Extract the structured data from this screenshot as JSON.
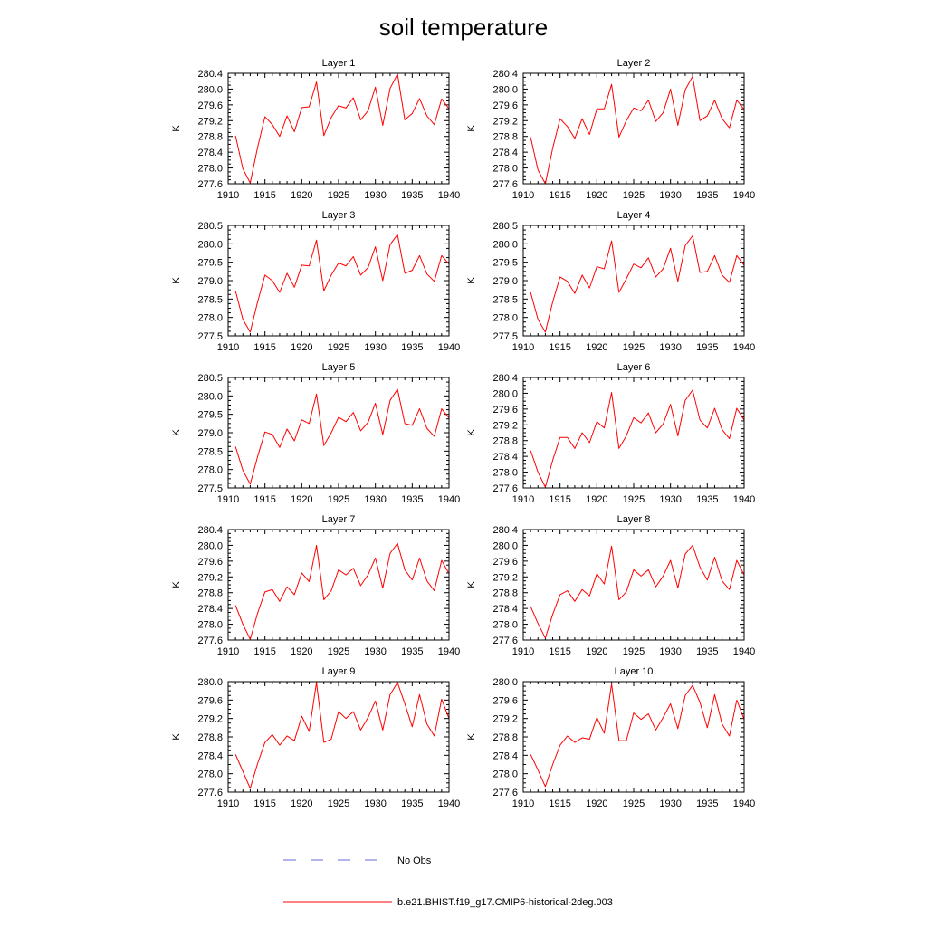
{
  "figure": {
    "title": "soil temperature"
  },
  "legend": {
    "entries": [
      {
        "label": "No Obs",
        "color": "#6a6ad8",
        "dash": true
      },
      {
        "label": "b.e21.BHIST.f19_g17.CMIP6-historical-2deg.003",
        "color": "#ff0000",
        "dash": false
      }
    ]
  },
  "chart_data": [
    {
      "type": "line",
      "title": "Layer 1",
      "xlabel": "",
      "ylabel": "K",
      "xlim": [
        1910,
        1940
      ],
      "ylim": [
        277.6,
        280.4
      ],
      "xticks": [
        "1910",
        "1915",
        "1920",
        "1925",
        "1930",
        "1935",
        "1940"
      ],
      "yticks": [
        "277.6",
        "278.0",
        "278.4",
        "278.8",
        "279.2",
        "279.6",
        "280.0",
        "280.4"
      ],
      "series": [
        {
          "name": "b.e21.BHIST.f19_g17.CMIP6-historical-2deg.003",
          "color": "#ff0000",
          "x": [
            1911,
            1912,
            1913,
            1914,
            1915,
            1916,
            1917,
            1918,
            1919,
            1920,
            1921,
            1922,
            1923,
            1924,
            1925,
            1926,
            1927,
            1928,
            1929,
            1930,
            1931,
            1932,
            1933,
            1934,
            1935,
            1936,
            1937,
            1938,
            1939,
            1940
          ],
          "y": [
            278.82,
            277.98,
            277.62,
            278.52,
            279.3,
            279.1,
            278.8,
            279.32,
            278.92,
            279.53,
            279.55,
            280.18,
            278.82,
            279.28,
            279.58,
            279.52,
            279.78,
            279.22,
            279.45,
            280.05,
            279.08,
            280.02,
            280.38,
            279.22,
            279.38,
            279.76,
            279.32,
            279.1,
            279.75,
            279.5
          ]
        }
      ]
    },
    {
      "type": "line",
      "title": "Layer 2",
      "xlabel": "",
      "ylabel": "K",
      "xlim": [
        1910,
        1940
      ],
      "ylim": [
        277.6,
        280.4
      ],
      "xticks": [
        "1910",
        "1915",
        "1920",
        "1925",
        "1930",
        "1935",
        "1940"
      ],
      "yticks": [
        "277.6",
        "278.0",
        "278.4",
        "278.8",
        "279.2",
        "279.6",
        "280.0",
        "280.4"
      ],
      "series": [
        {
          "name": "b.e21.BHIST.f19_g17.CMIP6-historical-2deg.003",
          "color": "#ff0000",
          "x": [
            1911,
            1912,
            1913,
            1914,
            1915,
            1916,
            1917,
            1918,
            1919,
            1920,
            1921,
            1922,
            1923,
            1924,
            1925,
            1926,
            1927,
            1928,
            1929,
            1930,
            1931,
            1932,
            1933,
            1934,
            1935,
            1936,
            1937,
            1938,
            1939,
            1940
          ],
          "y": [
            278.78,
            277.95,
            277.6,
            278.5,
            279.25,
            279.05,
            278.75,
            279.25,
            278.85,
            279.5,
            279.5,
            280.12,
            278.78,
            279.2,
            279.52,
            279.45,
            279.72,
            279.18,
            279.4,
            280.0,
            279.08,
            279.98,
            280.32,
            279.2,
            279.32,
            279.72,
            279.25,
            279.02,
            279.72,
            279.48
          ]
        }
      ]
    },
    {
      "type": "line",
      "title": "Layer 3",
      "xlabel": "",
      "ylabel": "K",
      "xlim": [
        1910,
        1940
      ],
      "ylim": [
        277.5,
        280.5
      ],
      "xticks": [
        "1910",
        "1915",
        "1920",
        "1925",
        "1930",
        "1935",
        "1940"
      ],
      "yticks": [
        "277.5",
        "278.0",
        "278.5",
        "279.0",
        "279.5",
        "280.0",
        "280.5"
      ],
      "series": [
        {
          "name": "b.e21.BHIST.f19_g17.CMIP6-historical-2deg.003",
          "color": "#ff0000",
          "x": [
            1911,
            1912,
            1913,
            1914,
            1915,
            1916,
            1917,
            1918,
            1919,
            1920,
            1921,
            1922,
            1923,
            1924,
            1925,
            1926,
            1927,
            1928,
            1929,
            1930,
            1931,
            1932,
            1933,
            1934,
            1935,
            1936,
            1937,
            1938,
            1939,
            1940
          ],
          "y": [
            278.72,
            277.95,
            277.6,
            278.42,
            279.15,
            279.0,
            278.68,
            279.2,
            278.82,
            279.42,
            279.4,
            280.1,
            278.72,
            279.15,
            279.48,
            279.4,
            279.65,
            279.15,
            279.35,
            279.92,
            279.0,
            279.98,
            280.25,
            279.2,
            279.28,
            279.68,
            279.18,
            278.98,
            279.68,
            279.45
          ]
        }
      ]
    },
    {
      "type": "line",
      "title": "Layer 4",
      "xlabel": "",
      "ylabel": "K",
      "xlim": [
        1910,
        1940
      ],
      "ylim": [
        277.5,
        280.5
      ],
      "xticks": [
        "1910",
        "1915",
        "1920",
        "1925",
        "1930",
        "1935",
        "1940"
      ],
      "yticks": [
        "277.5",
        "278.0",
        "278.5",
        "279.0",
        "279.5",
        "280.0",
        "280.5"
      ],
      "series": [
        {
          "name": "b.e21.BHIST.f19_g17.CMIP6-historical-2deg.003",
          "color": "#ff0000",
          "x": [
            1911,
            1912,
            1913,
            1914,
            1915,
            1916,
            1917,
            1918,
            1919,
            1920,
            1921,
            1922,
            1923,
            1924,
            1925,
            1926,
            1927,
            1928,
            1929,
            1930,
            1931,
            1932,
            1933,
            1934,
            1935,
            1936,
            1937,
            1938,
            1939,
            1940
          ],
          "y": [
            278.68,
            277.95,
            277.6,
            278.42,
            279.1,
            278.98,
            278.65,
            279.15,
            278.8,
            279.38,
            279.32,
            280.08,
            278.68,
            279.05,
            279.45,
            279.35,
            279.62,
            279.1,
            279.32,
            279.88,
            278.98,
            279.95,
            280.22,
            279.22,
            279.25,
            279.68,
            279.15,
            278.95,
            279.68,
            279.42
          ]
        }
      ]
    },
    {
      "type": "line",
      "title": "Layer 5",
      "xlabel": "",
      "ylabel": "K",
      "xlim": [
        1910,
        1940
      ],
      "ylim": [
        277.5,
        280.5
      ],
      "xticks": [
        "1910",
        "1915",
        "1920",
        "1925",
        "1930",
        "1935",
        "1940"
      ],
      "yticks": [
        "277.5",
        "278.0",
        "278.5",
        "279.0",
        "279.5",
        "280.0",
        "280.5"
      ],
      "series": [
        {
          "name": "b.e21.BHIST.f19_g17.CMIP6-historical-2deg.003",
          "color": "#ff0000",
          "x": [
            1911,
            1912,
            1913,
            1914,
            1915,
            1916,
            1917,
            1918,
            1919,
            1920,
            1921,
            1922,
            1923,
            1924,
            1925,
            1926,
            1927,
            1928,
            1929,
            1930,
            1931,
            1932,
            1933,
            1934,
            1935,
            1936,
            1937,
            1938,
            1939,
            1940
          ],
          "y": [
            278.62,
            277.98,
            277.6,
            278.35,
            279.02,
            278.95,
            278.6,
            279.1,
            278.78,
            279.35,
            279.25,
            280.05,
            278.65,
            279.0,
            279.42,
            279.3,
            279.55,
            279.05,
            279.28,
            279.8,
            278.95,
            279.88,
            280.18,
            279.25,
            279.2,
            279.65,
            279.12,
            278.9,
            279.65,
            279.4
          ]
        }
      ]
    },
    {
      "type": "line",
      "title": "Layer 6",
      "xlabel": "",
      "ylabel": "K",
      "xlim": [
        1910,
        1940
      ],
      "ylim": [
        277.6,
        280.4
      ],
      "xticks": [
        "1910",
        "1915",
        "1920",
        "1925",
        "1930",
        "1935",
        "1940"
      ],
      "yticks": [
        "277.6",
        "278.0",
        "278.4",
        "278.8",
        "279.2",
        "279.6",
        "280.0",
        "280.4"
      ],
      "series": [
        {
          "name": "b.e21.BHIST.f19_g17.CMIP6-historical-2deg.003",
          "color": "#ff0000",
          "x": [
            1911,
            1912,
            1913,
            1914,
            1915,
            1916,
            1917,
            1918,
            1919,
            1920,
            1921,
            1922,
            1923,
            1924,
            1925,
            1926,
            1927,
            1928,
            1929,
            1930,
            1931,
            1932,
            1933,
            1934,
            1935,
            1936,
            1937,
            1938,
            1939,
            1940
          ],
          "y": [
            278.55,
            278.0,
            277.62,
            278.3,
            278.88,
            278.88,
            278.6,
            279.0,
            278.75,
            279.28,
            279.12,
            280.02,
            278.6,
            278.92,
            279.38,
            279.25,
            279.5,
            279.0,
            279.22,
            279.72,
            278.92,
            279.82,
            280.08,
            279.32,
            279.12,
            279.62,
            279.08,
            278.85,
            279.62,
            279.32
          ]
        }
      ]
    },
    {
      "type": "line",
      "title": "Layer 7",
      "xlabel": "",
      "ylabel": "K",
      "xlim": [
        1910,
        1940
      ],
      "ylim": [
        277.6,
        280.4
      ],
      "xticks": [
        "1910",
        "1915",
        "1920",
        "1925",
        "1930",
        "1935",
        "1940"
      ],
      "yticks": [
        "277.6",
        "278.0",
        "278.4",
        "278.8",
        "279.2",
        "279.6",
        "280.0",
        "280.4"
      ],
      "series": [
        {
          "name": "b.e21.BHIST.f19_g17.CMIP6-historical-2deg.003",
          "color": "#ff0000",
          "x": [
            1911,
            1912,
            1913,
            1914,
            1915,
            1916,
            1917,
            1918,
            1919,
            1920,
            1921,
            1922,
            1923,
            1924,
            1925,
            1926,
            1927,
            1928,
            1929,
            1930,
            1931,
            1932,
            1933,
            1934,
            1935,
            1936,
            1937,
            1938,
            1939,
            1940
          ],
          "y": [
            278.48,
            278.0,
            277.62,
            278.28,
            278.82,
            278.88,
            278.58,
            278.95,
            278.75,
            279.3,
            279.08,
            280.0,
            278.62,
            278.85,
            279.38,
            279.25,
            279.42,
            278.98,
            279.25,
            279.68,
            278.92,
            279.8,
            280.05,
            279.38,
            279.12,
            279.68,
            279.1,
            278.85,
            279.62,
            279.28
          ]
        }
      ]
    },
    {
      "type": "line",
      "title": "Layer 8",
      "xlabel": "",
      "ylabel": "K",
      "xlim": [
        1910,
        1940
      ],
      "ylim": [
        277.6,
        280.4
      ],
      "xticks": [
        "1910",
        "1915",
        "1920",
        "1925",
        "1930",
        "1935",
        "1940"
      ],
      "yticks": [
        "277.6",
        "278.0",
        "278.4",
        "278.8",
        "279.2",
        "279.6",
        "280.0",
        "280.4"
      ],
      "series": [
        {
          "name": "b.e21.BHIST.f19_g17.CMIP6-historical-2deg.003",
          "color": "#ff0000",
          "x": [
            1911,
            1912,
            1913,
            1914,
            1915,
            1916,
            1917,
            1918,
            1919,
            1920,
            1921,
            1922,
            1923,
            1924,
            1925,
            1926,
            1927,
            1928,
            1929,
            1930,
            1931,
            1932,
            1933,
            1934,
            1935,
            1936,
            1937,
            1938,
            1939,
            1940
          ],
          "y": [
            278.45,
            278.02,
            277.65,
            278.25,
            278.75,
            278.85,
            278.58,
            278.88,
            278.72,
            279.28,
            279.02,
            279.98,
            278.62,
            278.82,
            279.38,
            279.22,
            279.38,
            278.95,
            279.22,
            279.62,
            278.92,
            279.78,
            280.0,
            279.45,
            279.12,
            279.7,
            279.1,
            278.88,
            279.62,
            279.25
          ]
        }
      ]
    },
    {
      "type": "line",
      "title": "Layer 9",
      "xlabel": "",
      "ylabel": "K",
      "xlim": [
        1910,
        1940
      ],
      "ylim": [
        277.6,
        280.0
      ],
      "xticks": [
        "1910",
        "1915",
        "1920",
        "1925",
        "1930",
        "1935",
        "1940"
      ],
      "yticks": [
        "277.6",
        "278.0",
        "278.4",
        "278.8",
        "279.2",
        "279.6",
        "280.0"
      ],
      "series": [
        {
          "name": "b.e21.BHIST.f19_g17.CMIP6-historical-2deg.003",
          "color": "#ff0000",
          "x": [
            1911,
            1912,
            1913,
            1914,
            1915,
            1916,
            1917,
            1918,
            1919,
            1920,
            1921,
            1922,
            1923,
            1924,
            1925,
            1926,
            1927,
            1928,
            1929,
            1930,
            1931,
            1932,
            1933,
            1934,
            1935,
            1936,
            1937,
            1938,
            1939,
            1940
          ],
          "y": [
            278.42,
            278.05,
            277.68,
            278.22,
            278.68,
            278.85,
            278.62,
            278.82,
            278.72,
            279.25,
            278.92,
            279.98,
            278.68,
            278.75,
            279.35,
            279.2,
            279.35,
            278.95,
            279.22,
            279.58,
            278.95,
            279.72,
            279.98,
            279.52,
            279.02,
            279.72,
            279.08,
            278.82,
            279.62,
            279.2
          ]
        }
      ]
    },
    {
      "type": "line",
      "title": "Layer 10",
      "xlabel": "",
      "ylabel": "K",
      "xlim": [
        1910,
        1940
      ],
      "ylim": [
        277.6,
        280.0
      ],
      "xticks": [
        "1910",
        "1915",
        "1920",
        "1925",
        "1930",
        "1935",
        "1940"
      ],
      "yticks": [
        "277.6",
        "278.0",
        "278.4",
        "278.8",
        "279.2",
        "279.6",
        "280.0"
      ],
      "series": [
        {
          "name": "b.e21.BHIST.f19_g17.CMIP6-historical-2deg.003",
          "color": "#ff0000",
          "x": [
            1911,
            1912,
            1913,
            1914,
            1915,
            1916,
            1917,
            1918,
            1919,
            1920,
            1921,
            1922,
            1923,
            1924,
            1925,
            1926,
            1927,
            1928,
            1929,
            1930,
            1931,
            1932,
            1933,
            1934,
            1935,
            1936,
            1937,
            1938,
            1939,
            1940
          ],
          "y": [
            278.42,
            278.08,
            277.72,
            278.2,
            278.62,
            278.82,
            278.68,
            278.78,
            278.75,
            279.22,
            278.88,
            279.95,
            278.72,
            278.72,
            279.32,
            279.18,
            279.3,
            278.95,
            279.22,
            279.52,
            278.98,
            279.7,
            279.92,
            279.55,
            279.0,
            279.72,
            279.08,
            278.82,
            279.6,
            279.18
          ]
        }
      ]
    }
  ]
}
